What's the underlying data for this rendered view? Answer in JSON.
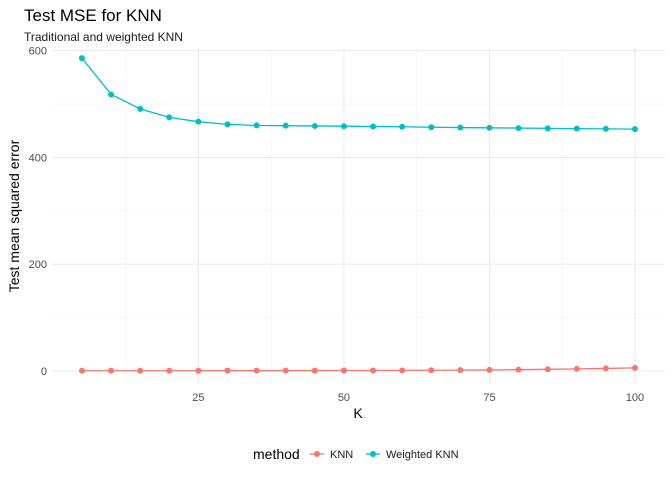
{
  "chart_data": {
    "type": "line",
    "title": "Test MSE for KNN",
    "subtitle": "Traditional and weighted KNN",
    "xlabel": "K",
    "ylabel": "Test mean squared error",
    "xlim": [
      5,
      100
    ],
    "ylim": [
      0,
      590
    ],
    "x_ticks": [
      25,
      50,
      75,
      100
    ],
    "y_ticks": [
      0,
      200,
      400,
      600
    ],
    "grid": true,
    "legend": {
      "title": "method",
      "position": "bottom"
    },
    "x": [
      5,
      10,
      15,
      20,
      25,
      30,
      35,
      40,
      45,
      50,
      55,
      60,
      65,
      70,
      75,
      80,
      85,
      90,
      95,
      100
    ],
    "series": [
      {
        "name": "KNN",
        "color": "#F8766D",
        "values": [
          0.5,
          0.5,
          0.5,
          0.5,
          0.5,
          0.6,
          0.6,
          0.7,
          0.8,
          0.9,
          1.0,
          1.2,
          1.4,
          1.7,
          2.0,
          2.5,
          3.2,
          4.0,
          4.8,
          5.8
        ]
      },
      {
        "name": "Weighted KNN",
        "color": "#00BFC4",
        "values": [
          586,
          518,
          491,
          475,
          467,
          462,
          460,
          459.5,
          459,
          458.5,
          458,
          457.5,
          456.5,
          456,
          455.5,
          455,
          454.5,
          454,
          453.5,
          453
        ]
      }
    ]
  }
}
